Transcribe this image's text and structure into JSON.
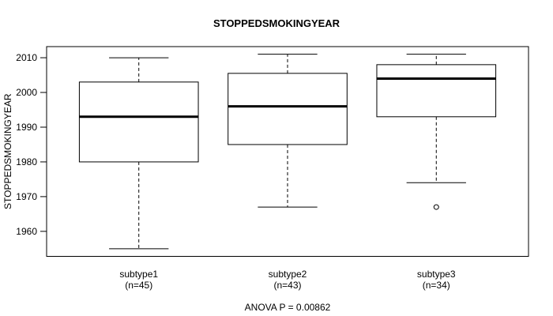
{
  "title": "STOPPEDSMOKINGYEAR",
  "chart_data": {
    "type": "boxplot",
    "title": "STOPPEDSMOKINGYEAR",
    "ylabel": "STOPPEDSMOKINGYEAR",
    "annotation": "ANOVA P = 0.00862",
    "ylim": [
      1952.8,
      2013.2
    ],
    "yticks": [
      1960,
      1970,
      1980,
      1990,
      2000,
      2010
    ],
    "grid": false,
    "legend": "none",
    "colors": {
      "line": "#000000",
      "box_fill": "#ffffff",
      "background": "#ffffff"
    },
    "groups": [
      {
        "label": "subtype1",
        "sublabel": "(n=45)",
        "n": 45,
        "whisker_low": 1955,
        "q1": 1980,
        "median": 1993,
        "q3": 2003,
        "whisker_high": 2010,
        "outliers": []
      },
      {
        "label": "subtype2",
        "sublabel": "(n=43)",
        "n": 43,
        "whisker_low": 1967,
        "q1": 1985,
        "median": 1996,
        "q3": 2005.5,
        "whisker_high": 2011,
        "outliers": []
      },
      {
        "label": "subtype3",
        "sublabel": "(n=34)",
        "n": 34,
        "whisker_low": 1974,
        "q1": 1993,
        "median": 2004,
        "q3": 2008,
        "whisker_high": 2011,
        "outliers": [
          1967
        ]
      }
    ]
  }
}
